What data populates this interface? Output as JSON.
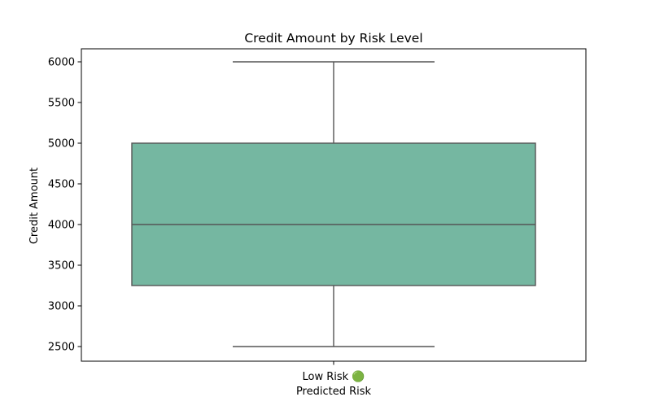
{
  "chart_data": {
    "type": "box",
    "title": "Credit Amount by Risk Level",
    "xlabel": "Predicted Risk",
    "ylabel": "Credit Amount",
    "ylim": [
      2320,
      6160
    ],
    "yticks": [
      2500,
      3000,
      3500,
      4000,
      4500,
      5000,
      5500,
      6000
    ],
    "grid": false,
    "categories": [
      "Low Risk 🟢"
    ],
    "boxes": [
      {
        "category": "Low Risk 🟢",
        "whisker_low": 2500,
        "q1": 3250,
        "median": 4000,
        "q3": 5000,
        "whisker_high": 6000,
        "color": "#75b7a1"
      }
    ]
  }
}
